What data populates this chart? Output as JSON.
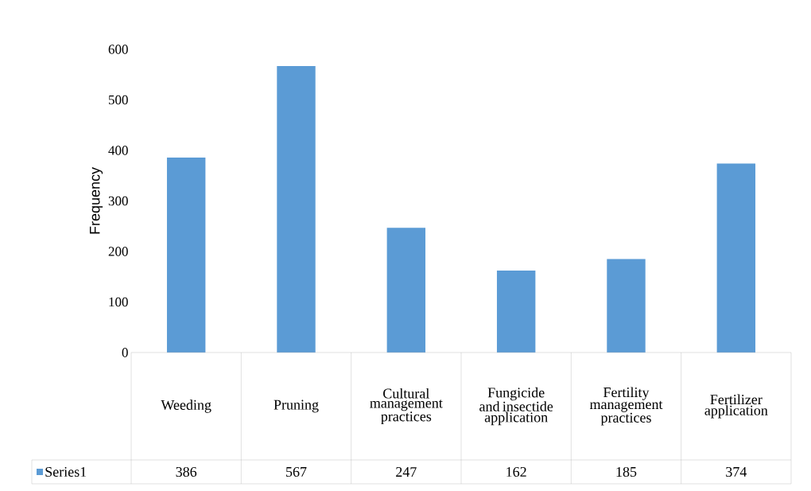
{
  "chart_data": {
    "type": "bar",
    "ylabel": "Frequency",
    "categories": [
      "Weeding",
      "Pruning",
      "Cultural management practices",
      "Fungicide and insectide application",
      "Fertility management practices",
      "Fertilizer application"
    ],
    "series": [
      {
        "name": "Series1",
        "color": "#5b9bd5",
        "values": [
          386,
          567,
          247,
          162,
          185,
          374
        ]
      }
    ],
    "ylim": [
      0,
      600
    ],
    "yticks": [
      0,
      100,
      200,
      300,
      400,
      500,
      600
    ],
    "data_labels": true,
    "grid": false
  }
}
